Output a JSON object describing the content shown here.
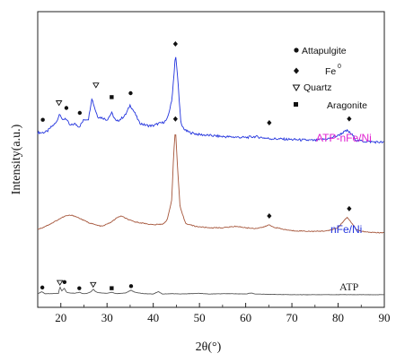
{
  "chart_data": {
    "type": "line",
    "xlabel": "2θ(°)",
    "ylabel": "Intensity(a.u.)",
    "xlim": [
      15,
      90
    ],
    "xticks": [
      20,
      30,
      40,
      50,
      60,
      70,
      80,
      90
    ],
    "xtick_labels": [
      "20",
      "30",
      "40",
      "50",
      "60",
      "70",
      "80",
      "90"
    ],
    "y_ticks_shown": false,
    "legend": {
      "placement": "top-right",
      "entries": [
        {
          "symbol": "filled-diamond-circle",
          "label": "Attapulgite"
        },
        {
          "symbol": "filled-diamond",
          "label": "Fe",
          "superscript": "0"
        },
        {
          "symbol": "open-triangle-down",
          "label": "Quartz"
        },
        {
          "symbol": "filled-square",
          "label": "Aragonite"
        }
      ]
    },
    "series": [
      {
        "name": "ATP-nFe/Ni",
        "color": "#2233dd",
        "offset": 2.0,
        "x": [
          15,
          16,
          17,
          18,
          19,
          19.8,
          20.4,
          21,
          22,
          23,
          24,
          25,
          26,
          26.7,
          27.4,
          28,
          29,
          30,
          31,
          32,
          33,
          34,
          35,
          36,
          37,
          38,
          39,
          40,
          41,
          42,
          43,
          44,
          44.5,
          44.8,
          45.3,
          46,
          47,
          48,
          50,
          55,
          60,
          62,
          65,
          70,
          75,
          78,
          80,
          81,
          82,
          83,
          84,
          86,
          90
        ],
        "y": [
          0.2,
          0.2,
          0.21,
          0.26,
          0.3,
          0.4,
          0.32,
          0.35,
          0.27,
          0.29,
          0.26,
          0.33,
          0.34,
          0.55,
          0.44,
          0.36,
          0.35,
          0.33,
          0.4,
          0.31,
          0.34,
          0.38,
          0.48,
          0.4,
          0.3,
          0.28,
          0.27,
          0.27,
          0.29,
          0.3,
          0.33,
          0.52,
          0.8,
          1.0,
          0.75,
          0.28,
          0.22,
          0.2,
          0.18,
          0.16,
          0.15,
          0.16,
          0.14,
          0.13,
          0.12,
          0.14,
          0.17,
          0.2,
          0.22,
          0.18,
          0.12,
          0.11,
          0.1
        ]
      },
      {
        "name": "nFe/Ni",
        "color": "#a5553a",
        "offset": 1.0,
        "x": [
          15,
          16,
          18,
          20,
          21,
          22,
          23,
          24,
          25,
          26,
          27,
          28,
          29,
          30,
          31,
          32,
          33,
          34,
          35,
          36,
          38,
          40,
          42,
          43,
          44,
          44.4,
          44.8,
          45.2,
          45.8,
          47,
          49,
          52,
          55,
          58,
          60,
          62,
          64,
          65,
          66,
          68,
          70,
          75,
          78,
          80,
          81,
          82,
          83,
          84,
          86,
          90
        ],
        "y": [
          0.1,
          0.12,
          0.18,
          0.25,
          0.28,
          0.29,
          0.28,
          0.25,
          0.22,
          0.19,
          0.17,
          0.15,
          0.14,
          0.17,
          0.2,
          0.25,
          0.28,
          0.25,
          0.22,
          0.2,
          0.18,
          0.16,
          0.17,
          0.22,
          0.5,
          1.1,
          1.48,
          1.0,
          0.4,
          0.18,
          0.14,
          0.12,
          0.12,
          0.14,
          0.12,
          0.11,
          0.13,
          0.16,
          0.13,
          0.1,
          0.08,
          0.07,
          0.08,
          0.12,
          0.2,
          0.26,
          0.18,
          0.09,
          0.06,
          0.05
        ]
      },
      {
        "name": "ATP",
        "color": "#555555",
        "offset": 0.0,
        "x": [
          15,
          15.9,
          16.5,
          18,
          19.5,
          19.8,
          20.2,
          20.8,
          21.2,
          22,
          23,
          24,
          24.8,
          25.5,
          26.6,
          27,
          27.4,
          28,
          30,
          31,
          32,
          34,
          35.2,
          36,
          38,
          40,
          41.1,
          42,
          44,
          46,
          48,
          50,
          52,
          56,
          60,
          61.2,
          62,
          65,
          70,
          75,
          80,
          85,
          90
        ],
        "y": [
          0.05,
          0.12,
          0.06,
          0.06,
          0.07,
          0.27,
          0.14,
          0.22,
          0.1,
          0.08,
          0.07,
          0.1,
          0.06,
          0.06,
          0.12,
          0.2,
          0.13,
          0.09,
          0.07,
          0.1,
          0.06,
          0.08,
          0.16,
          0.1,
          0.06,
          0.05,
          0.12,
          0.05,
          0.06,
          0.05,
          0.06,
          0.07,
          0.05,
          0.06,
          0.05,
          0.08,
          0.05,
          0.04,
          0.03,
          0.03,
          0.03,
          0.03,
          0.03
        ]
      }
    ],
    "peak_markers": [
      {
        "series": "ATP-nFe/Ni",
        "symbol": "filled-diamond-circle",
        "x": 16.1,
        "y": 0.33
      },
      {
        "series": "ATP-nFe/Ni",
        "symbol": "open-triangle-down",
        "x": 19.6,
        "y": 0.5
      },
      {
        "series": "ATP-nFe/Ni",
        "symbol": "filled-diamond-circle",
        "x": 21.2,
        "y": 0.45
      },
      {
        "series": "ATP-nFe/Ni",
        "symbol": "filled-diamond-circle",
        "x": 24.1,
        "y": 0.4
      },
      {
        "series": "ATP-nFe/Ni",
        "symbol": "open-triangle-down",
        "x": 27.6,
        "y": 0.68
      },
      {
        "series": "ATP-nFe/Ni",
        "symbol": "filled-square",
        "x": 31.0,
        "y": 0.56
      },
      {
        "series": "ATP-nFe/Ni",
        "symbol": "filled-diamond-circle",
        "x": 35.1,
        "y": 0.6
      },
      {
        "series": "ATP-nFe/Ni",
        "symbol": "filled-diamond",
        "x": 44.8,
        "y": 1.1
      },
      {
        "series": "ATP-nFe/Ni",
        "symbol": "filled-diamond",
        "x": 65.1,
        "y": 0.3
      },
      {
        "series": "ATP-nFe/Ni",
        "symbol": "filled-diamond",
        "x": 82.4,
        "y": 0.34
      },
      {
        "series": "nFe/Ni",
        "symbol": "filled-diamond",
        "x": 44.8,
        "y": 1.6
      },
      {
        "series": "nFe/Ni",
        "symbol": "filled-diamond",
        "x": 65.1,
        "y": 0.28
      },
      {
        "series": "nFe/Ni",
        "symbol": "filled-diamond",
        "x": 82.4,
        "y": 0.38
      },
      {
        "series": "ATP",
        "symbol": "filled-diamond-circle",
        "x": 16.0,
        "y": 0.24
      },
      {
        "series": "ATP",
        "symbol": "open-triangle-down",
        "x": 19.8,
        "y": 0.38
      },
      {
        "series": "ATP",
        "symbol": "filled-diamond-circle",
        "x": 20.8,
        "y": 0.4
      },
      {
        "series": "ATP",
        "symbol": "filled-diamond-circle",
        "x": 24.0,
        "y": 0.22
      },
      {
        "series": "ATP",
        "symbol": "open-triangle-down",
        "x": 27.0,
        "y": 0.32
      },
      {
        "series": "ATP",
        "symbol": "filled-square",
        "x": 31.0,
        "y": 0.22
      },
      {
        "series": "ATP",
        "symbol": "filled-diamond-circle",
        "x": 35.2,
        "y": 0.28
      }
    ]
  }
}
